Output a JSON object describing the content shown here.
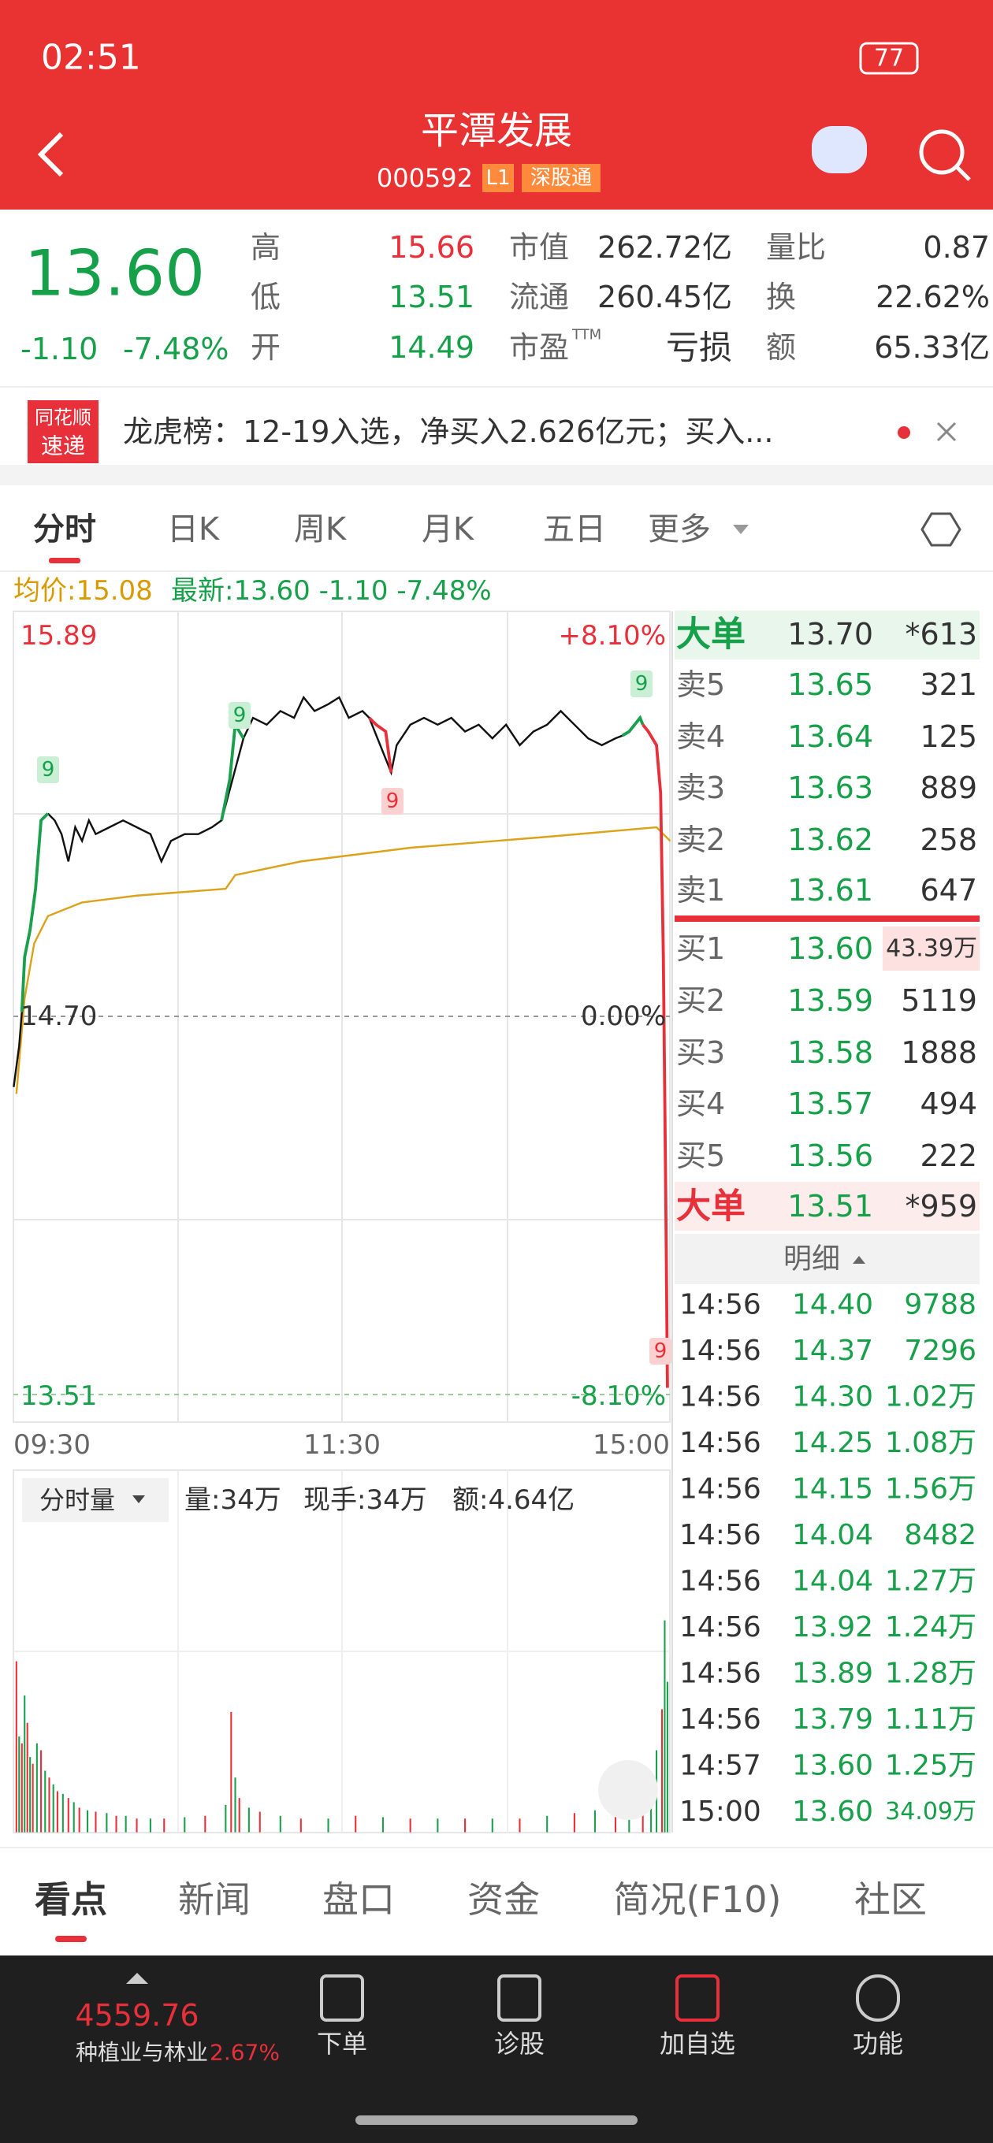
{
  "status_bar": {
    "time": "02:51",
    "battery": "77"
  },
  "header": {
    "title": "平潭发展",
    "code": "000592",
    "badges": [
      "L1",
      "深股通"
    ]
  },
  "quote": {
    "price": "13.60",
    "change": "-1.10",
    "change_pct": "-7.48%",
    "stats": [
      {
        "label": "高",
        "value": "15.66"
      },
      {
        "label": "低",
        "value": "13.51"
      },
      {
        "label": "开",
        "value": "14.49"
      },
      {
        "label": "市值",
        "value": "262.72亿"
      },
      {
        "label": "流通",
        "value": "260.45亿"
      },
      {
        "label": "市盈",
        "sup": "TTM",
        "value": "亏损"
      },
      {
        "label": "量比",
        "value": "0.87"
      },
      {
        "label": "换",
        "value": "22.62%"
      },
      {
        "label": "额",
        "value": "65.33亿"
      }
    ]
  },
  "banner": {
    "icon": [
      "同花顺",
      "速递"
    ],
    "text": "龙虎榜：12-19入选，净买入2.626亿元；买入..."
  },
  "tabs": [
    "分时",
    "日K",
    "周K",
    "月K",
    "五日",
    "更多"
  ],
  "chart": {
    "avg": "均价:15.08",
    "latest": "最新:13.60 -1.10 -7.48%",
    "top_price": "15.89",
    "top_pct": "+8.10%",
    "mid_price": "14.70",
    "mid_pct": "0.00%",
    "low_price": "13.51",
    "low_pct": "-8.10%",
    "times": [
      "09:30",
      "11:30",
      "15:00"
    ],
    "markers": [
      "9",
      "9",
      "9",
      "9",
      "9"
    ]
  },
  "volume": {
    "selector": "分时量",
    "vol": "量:34万",
    "hand": "现手:34万",
    "amount": "额:4.64亿"
  },
  "order_book": {
    "big_sell": {
      "label": "大单",
      "price": "13.70",
      "volume": "*613"
    },
    "sells": [
      {
        "label": "卖5",
        "price": "13.65",
        "volume": "321"
      },
      {
        "label": "卖4",
        "price": "13.64",
        "volume": "125"
      },
      {
        "label": "卖3",
        "price": "13.63",
        "volume": "889"
      },
      {
        "label": "卖2",
        "price": "13.62",
        "volume": "258"
      },
      {
        "label": "卖1",
        "price": "13.61",
        "volume": "647"
      }
    ],
    "buys": [
      {
        "label": "买1",
        "price": "13.60",
        "volume": "43.39万"
      },
      {
        "label": "买2",
        "price": "13.59",
        "volume": "5119"
      },
      {
        "label": "买3",
        "price": "13.58",
        "volume": "1888"
      },
      {
        "label": "买4",
        "price": "13.57",
        "volume": "494"
      },
      {
        "label": "买5",
        "price": "13.56",
        "volume": "222"
      }
    ],
    "big_buy": {
      "label": "大单",
      "price": "13.51",
      "volume": "*959"
    },
    "detail": "明细"
  },
  "ticks": [
    [
      "14:56",
      "14.40",
      "9788"
    ],
    [
      "14:56",
      "14.37",
      "7296"
    ],
    [
      "14:56",
      "14.30",
      "1.02万"
    ],
    [
      "14:56",
      "14.25",
      "1.08万"
    ],
    [
      "14:56",
      "14.15",
      "1.56万"
    ],
    [
      "14:56",
      "14.04",
      "8482"
    ],
    [
      "14:56",
      "14.04",
      "1.27万"
    ],
    [
      "14:56",
      "13.92",
      "1.24万"
    ],
    [
      "14:56",
      "13.89",
      "1.28万"
    ],
    [
      "14:56",
      "13.79",
      "1.11万"
    ],
    [
      "14:57",
      "13.60",
      "1.25万"
    ],
    [
      "15:00",
      "13.60",
      "34.09万"
    ]
  ],
  "bottom_tabs": [
    "看点",
    "新闻",
    "盘口",
    "资金",
    "简况(F10)",
    "社区"
  ],
  "footer": {
    "index_value": "4559.76",
    "index_name": "种植业与林业",
    "index_pct": "2.67%",
    "actions": [
      "下单",
      "诊股",
      "加自选",
      "功能"
    ]
  }
}
